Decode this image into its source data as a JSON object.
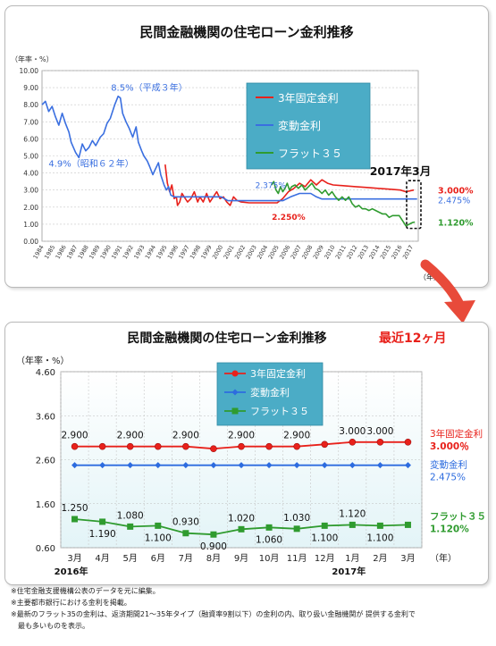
{
  "chart_data": [
    {
      "type": "line",
      "title": "民間金融機関の住宅ローン金利推移",
      "unit_label": "（年率・%）",
      "ylim": [
        0,
        10
      ],
      "yticks": [
        "0.00",
        "1.00",
        "2.00",
        "3.00",
        "4.00",
        "5.00",
        "6.00",
        "7.00",
        "8.00",
        "9.00",
        "10.00"
      ],
      "xlim": [
        1984,
        2017.6
      ],
      "x_categories": [
        "1984",
        "1985",
        "1986",
        "1987",
        "1988",
        "1989",
        "1990",
        "1991",
        "1992",
        "1993",
        "1994",
        "1995",
        "1996",
        "1997",
        "1998",
        "1999",
        "2000",
        "2001",
        "2002",
        "2003",
        "2004",
        "2005",
        "2006",
        "2007",
        "2008",
        "2009",
        "2010",
        "2011",
        "2012",
        "2013",
        "2014",
        "2015",
        "2016",
        "2017"
      ],
      "x_unit": "（年）",
      "legend": {
        "position": "top-right",
        "background": "#4bacc6",
        "items": [
          "3年固定金利",
          "変動金利",
          "フラット３５"
        ]
      },
      "series": [
        {
          "name": "3年固定金利",
          "color": "#e8211b",
          "points": [
            [
              1995.0,
              4.5
            ],
            [
              1995.2,
              3.4
            ],
            [
              1995.4,
              2.9
            ],
            [
              1995.6,
              3.3
            ],
            [
              1995.8,
              2.5
            ],
            [
              1996.0,
              2.6
            ],
            [
              1996.1,
              2.1
            ],
            [
              1996.3,
              2.3
            ],
            [
              1996.5,
              2.8
            ],
            [
              1996.8,
              2.5
            ],
            [
              1997.0,
              2.3
            ],
            [
              1997.3,
              2.5
            ],
            [
              1997.6,
              2.9
            ],
            [
              1997.9,
              2.3
            ],
            [
              1998.1,
              2.6
            ],
            [
              1998.4,
              2.3
            ],
            [
              1998.7,
              2.8
            ],
            [
              1999.0,
              2.3
            ],
            [
              1999.3,
              2.6
            ],
            [
              1999.6,
              2.9
            ],
            [
              1999.9,
              2.5
            ],
            [
              2000.2,
              2.6
            ],
            [
              2000.5,
              2.3
            ],
            [
              2000.8,
              2.1
            ],
            [
              2001.1,
              2.6
            ],
            [
              2001.4,
              2.4
            ],
            [
              2001.8,
              2.3
            ],
            [
              2002.5,
              2.25
            ],
            [
              2003.5,
              2.25
            ],
            [
              2004.5,
              2.25
            ],
            [
              2005.0,
              2.25
            ],
            [
              2005.5,
              2.5
            ],
            [
              2006.0,
              2.9
            ],
            [
              2006.5,
              3.1
            ],
            [
              2007.0,
              3.4
            ],
            [
              2007.5,
              3.2
            ],
            [
              2008.0,
              3.6
            ],
            [
              2008.5,
              3.3
            ],
            [
              2009.0,
              3.6
            ],
            [
              2009.5,
              3.4
            ],
            [
              2010.0,
              3.3
            ],
            [
              2011.0,
              3.25
            ],
            [
              2012.0,
              3.2
            ],
            [
              2013.0,
              3.15
            ],
            [
              2014.0,
              3.1
            ],
            [
              2015.0,
              3.05
            ],
            [
              2016.0,
              3.0
            ],
            [
              2016.5,
              2.9
            ],
            [
              2017.2,
              3.0
            ]
          ]
        },
        {
          "name": "変動金利",
          "color": "#3a6fe0",
          "points": [
            [
              1984.0,
              8.0
            ],
            [
              1984.3,
              8.2
            ],
            [
              1984.6,
              7.6
            ],
            [
              1984.9,
              7.9
            ],
            [
              1985.2,
              7.3
            ],
            [
              1985.5,
              6.8
            ],
            [
              1985.8,
              7.5
            ],
            [
              1986.1,
              6.9
            ],
            [
              1986.4,
              6.4
            ],
            [
              1986.6,
              5.8
            ],
            [
              1987.0,
              5.2
            ],
            [
              1987.3,
              4.9
            ],
            [
              1987.6,
              5.7
            ],
            [
              1987.9,
              5.3
            ],
            [
              1988.2,
              5.5
            ],
            [
              1988.5,
              5.9
            ],
            [
              1988.8,
              5.6
            ],
            [
              1989.2,
              6.1
            ],
            [
              1989.5,
              6.3
            ],
            [
              1989.8,
              6.9
            ],
            [
              1990.1,
              7.2
            ],
            [
              1990.5,
              8.0
            ],
            [
              1990.8,
              8.5
            ],
            [
              1991.0,
              8.4
            ],
            [
              1991.2,
              7.5
            ],
            [
              1991.5,
              7.0
            ],
            [
              1991.8,
              6.6
            ],
            [
              1992.1,
              6.1
            ],
            [
              1992.4,
              6.7
            ],
            [
              1992.6,
              5.8
            ],
            [
              1992.9,
              5.3
            ],
            [
              1993.1,
              5.0
            ],
            [
              1993.4,
              4.7
            ],
            [
              1993.6,
              4.4
            ],
            [
              1993.9,
              3.9
            ],
            [
              1994.1,
              4.2
            ],
            [
              1994.4,
              4.6
            ],
            [
              1994.6,
              3.9
            ],
            [
              1994.9,
              3.3
            ],
            [
              1995.1,
              3.0
            ],
            [
              1995.3,
              3.2
            ],
            [
              1995.5,
              2.7
            ],
            [
              1995.8,
              2.6
            ],
            [
              2000.0,
              2.6
            ],
            [
              2000.6,
              2.375
            ],
            [
              2005.5,
              2.375
            ],
            [
              2006.2,
              2.6
            ],
            [
              2007.0,
              2.8
            ],
            [
              2008.0,
              2.8
            ],
            [
              2008.5,
              2.6
            ],
            [
              2009.0,
              2.475
            ],
            [
              2017.5,
              2.475
            ]
          ]
        },
        {
          "name": "フラット３５",
          "color": "#2f9b2f",
          "points": [
            [
              2004.5,
              3.3
            ],
            [
              2004.7,
              3.5
            ],
            [
              2004.9,
              3.0
            ],
            [
              2005.1,
              2.8
            ],
            [
              2005.3,
              3.2
            ],
            [
              2005.5,
              2.9
            ],
            [
              2005.7,
              3.1
            ],
            [
              2005.9,
              3.4
            ],
            [
              2006.1,
              3.0
            ],
            [
              2006.3,
              3.2
            ],
            [
              2006.6,
              3.3
            ],
            [
              2006.9,
              3.1
            ],
            [
              2007.2,
              3.3
            ],
            [
              2007.5,
              3.0
            ],
            [
              2007.8,
              3.2
            ],
            [
              2008.1,
              3.4
            ],
            [
              2008.4,
              3.1
            ],
            [
              2008.7,
              3.0
            ],
            [
              2009.0,
              2.8
            ],
            [
              2009.3,
              3.0
            ],
            [
              2009.6,
              2.7
            ],
            [
              2009.9,
              2.9
            ],
            [
              2010.2,
              2.6
            ],
            [
              2010.5,
              2.4
            ],
            [
              2010.8,
              2.6
            ],
            [
              2011.1,
              2.4
            ],
            [
              2011.4,
              2.6
            ],
            [
              2011.7,
              2.2
            ],
            [
              2012.0,
              2.0
            ],
            [
              2012.3,
              2.1
            ],
            [
              2012.6,
              1.9
            ],
            [
              2012.9,
              1.9
            ],
            [
              2013.2,
              1.8
            ],
            [
              2013.5,
              1.9
            ],
            [
              2013.8,
              1.8
            ],
            [
              2014.1,
              1.7
            ],
            [
              2014.4,
              1.6
            ],
            [
              2014.7,
              1.6
            ],
            [
              2015.0,
              1.4
            ],
            [
              2015.3,
              1.5
            ],
            [
              2015.6,
              1.5
            ],
            [
              2015.9,
              1.5
            ],
            [
              2016.2,
              1.2
            ],
            [
              2016.5,
              0.9
            ],
            [
              2016.8,
              1.0
            ],
            [
              2017.1,
              1.1
            ],
            [
              2017.3,
              1.12
            ]
          ]
        }
      ],
      "annotations": [
        {
          "text": "8.5%（平成３年）",
          "x": 1990.8,
          "y": 8.5,
          "color": "#3a6fe0"
        },
        {
          "text": "4.9%（昭和６２年）",
          "x": 1987.3,
          "y": 4.9,
          "color": "#3a6fe0"
        },
        {
          "text": "2.375%",
          "x": 2004.0,
          "y": 2.375,
          "color": "#3a6fe0"
        },
        {
          "text": "2.250%",
          "x": 2005.0,
          "y": 2.25,
          "color": "#e8211b"
        },
        {
          "text": "2017年3月",
          "x": 2017.2,
          "y": 3.5,
          "color": "#111111"
        }
      ],
      "end_values": [
        {
          "text": "3.000%",
          "color": "#e8211b"
        },
        {
          "text": "2.475%",
          "color": "#3a6fe0"
        },
        {
          "text": "1.120%",
          "color": "#2f9b2f"
        }
      ]
    },
    {
      "type": "line",
      "title": "民間金融機関の住宅ローン金利推移",
      "subtitle": "最近12ヶ月",
      "unit_label": "（年率・%）",
      "ylim": [
        0.6,
        4.6
      ],
      "yticks": [
        "0.60",
        "1.60",
        "2.60",
        "3.60",
        "4.60"
      ],
      "categories": [
        "3月",
        "4月",
        "5月",
        "6月",
        "7月",
        "8月",
        "9月",
        "10月",
        "11月",
        "12月",
        "1月",
        "2月",
        "3月"
      ],
      "year_labels": [
        {
          "text": "2016年",
          "index": 0
        },
        {
          "text": "2017年",
          "index": 10
        }
      ],
      "x_unit": "（年）",
      "legend": {
        "position": "top-center",
        "background": "#4bacc6",
        "items": [
          "3年固定金利",
          "変動金利",
          "フラット３５"
        ]
      },
      "series": [
        {
          "name": "3年固定金利",
          "color": "#e8211b",
          "marker": "circle",
          "values": [
            2.9,
            2.9,
            2.9,
            2.9,
            2.9,
            2.85,
            2.9,
            2.9,
            2.9,
            2.95,
            3.0,
            3.0,
            3.0
          ]
        },
        {
          "name": "変動金利",
          "color": "#2d6cdf",
          "marker": "diamond",
          "values": [
            2.475,
            2.475,
            2.475,
            2.475,
            2.475,
            2.475,
            2.475,
            2.475,
            2.475,
            2.475,
            2.475,
            2.475,
            2.475
          ]
        },
        {
          "name": "フラット３５",
          "color": "#2f9b2f",
          "marker": "square",
          "values": [
            1.25,
            1.19,
            1.08,
            1.1,
            0.93,
            0.9,
            1.02,
            1.06,
            1.03,
            1.1,
            1.12,
            1.1,
            1.12
          ]
        }
      ],
      "data_labels": [
        {
          "text": "2.900",
          "index": 0,
          "value": 2.9,
          "pos": "above"
        },
        {
          "text": "2.900",
          "index": 2,
          "value": 2.9,
          "pos": "above"
        },
        {
          "text": "2.900",
          "index": 4,
          "value": 2.9,
          "pos": "above"
        },
        {
          "text": "2.900",
          "index": 6,
          "value": 2.9,
          "pos": "above"
        },
        {
          "text": "2.900",
          "index": 8,
          "value": 2.9,
          "pos": "above"
        },
        {
          "text": "3.000",
          "index": 10,
          "value": 3.0,
          "pos": "above"
        },
        {
          "text": "3.000",
          "index": 11,
          "value": 3.0,
          "pos": "above"
        },
        {
          "text": "1.250",
          "index": 0,
          "value": 1.25,
          "pos": "above"
        },
        {
          "text": "1.190",
          "index": 1,
          "value": 1.19,
          "pos": "below"
        },
        {
          "text": "1.080",
          "index": 2,
          "value": 1.08,
          "pos": "above"
        },
        {
          "text": "1.100",
          "index": 3,
          "value": 1.1,
          "pos": "below"
        },
        {
          "text": "0.930",
          "index": 4,
          "value": 0.93,
          "pos": "above"
        },
        {
          "text": "0.900",
          "index": 5,
          "value": 0.9,
          "pos": "below"
        },
        {
          "text": "1.020",
          "index": 6,
          "value": 1.02,
          "pos": "above"
        },
        {
          "text": "1.060",
          "index": 7,
          "value": 1.06,
          "pos": "below"
        },
        {
          "text": "1.030",
          "index": 8,
          "value": 1.03,
          "pos": "above"
        },
        {
          "text": "1.100",
          "index": 9,
          "value": 1.1,
          "pos": "below"
        },
        {
          "text": "1.120",
          "index": 10,
          "value": 1.12,
          "pos": "above"
        },
        {
          "text": "1.100",
          "index": 11,
          "value": 1.1,
          "pos": "below"
        }
      ],
      "end_labels": [
        {
          "name": "3年固定金利",
          "value": "3.000％",
          "color": "#e8211b"
        },
        {
          "name": "変動金利",
          "value": "2.475%",
          "color": "#2d6cdf"
        },
        {
          "name": "フラット３５",
          "value": "1.120%",
          "color": "#2f9b2f"
        }
      ]
    }
  ],
  "notes": [
    "※住宅金融支援機構公表のデータを元に編集。",
    "※主要都市銀行における金利を掲載。",
    "※最新のフラット35の金利は、返済期間21～35年タイプ（融資率9割以下）の金利の内、取り扱い金融機関が 提供する金利で",
    "　最も多いものを表示。"
  ],
  "colors": {
    "legend_bg": "#4bacc6",
    "callout_arrow": "#e84a3a",
    "subtitle": "#e8211b",
    "plot_bg_bottom": "#e3f4f7"
  }
}
